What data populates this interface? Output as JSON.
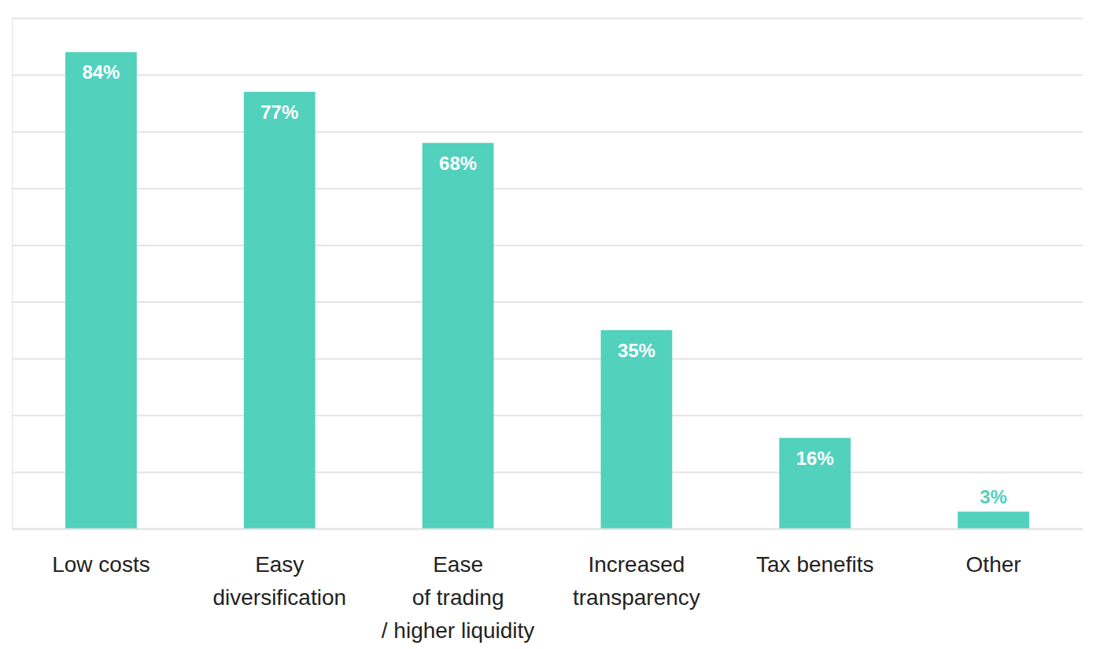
{
  "chart_data": {
    "type": "bar",
    "categories": [
      "Low costs",
      "Easy\ndiversification",
      "Ease\nof trading\n/ higher liquidity",
      "Increased\ntransparency",
      "Tax benefits",
      "Other"
    ],
    "values": [
      84,
      77,
      68,
      35,
      16,
      3
    ],
    "value_labels": [
      "84%",
      "77%",
      "68%",
      "35%",
      "16%",
      "3%"
    ],
    "color": "#52d1bd",
    "ylim": [
      0,
      90
    ],
    "yticks": [
      0,
      10,
      20,
      30,
      40,
      50,
      60,
      70,
      80,
      90
    ],
    "grid": true,
    "data_labels": true,
    "tick_labels": "x"
  }
}
